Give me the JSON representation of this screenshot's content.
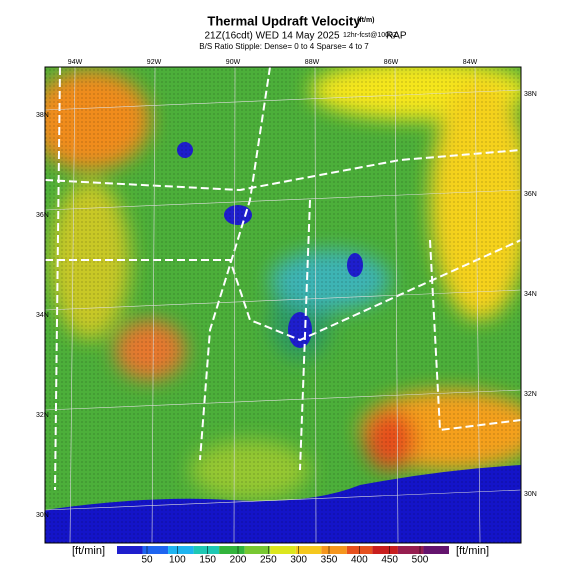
{
  "header": {
    "title": "Thermal Updraft Velocity",
    "title_unit": "(ft/m)",
    "subtitle": "21Z(16cdt) WED 14 May 2025",
    "forecast": "12hr-fcst@1000Z",
    "model": "RAP",
    "stipple_note": "B/S Ratio Stipple: Dense= 0 to 4  Sparse= 4 to 7"
  },
  "map": {
    "longitude_labels": [
      "94W",
      "92W",
      "90W",
      "88W",
      "86W",
      "84W"
    ],
    "latitude_labels_left": [
      "38N",
      "36N",
      "34N",
      "32N",
      "30N"
    ],
    "latitude_labels_right": [
      "38N",
      "36N",
      "34N",
      "32N",
      "30N"
    ]
  },
  "colorbar": {
    "unit_left": "[ft/min]",
    "unit_right": "[ft/min]",
    "ticks": [
      50,
      100,
      150,
      200,
      250,
      300,
      350,
      400,
      450,
      500
    ]
  }
}
